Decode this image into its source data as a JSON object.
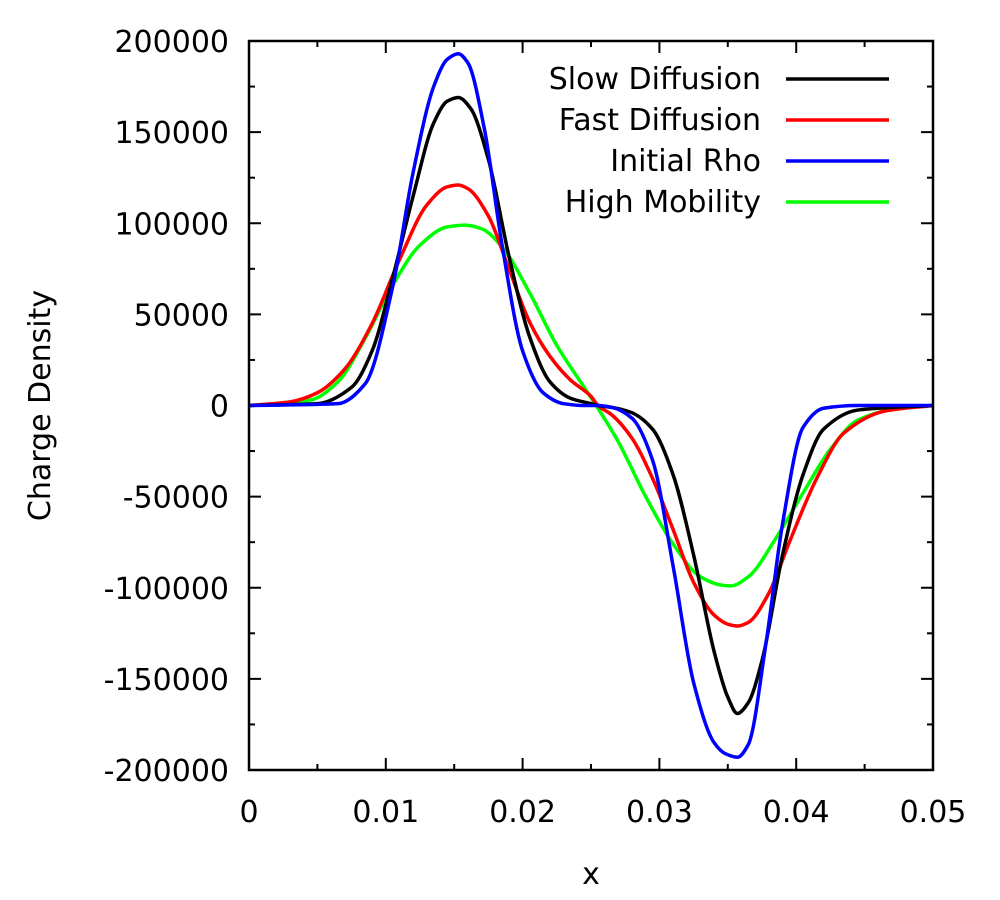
{
  "chart_data": {
    "type": "line",
    "title": "",
    "xlabel": "x",
    "ylabel": "Charge Density",
    "xlim": [
      0,
      0.05
    ],
    "ylim": [
      -200000,
      200000
    ],
    "xticks": [
      0,
      0.01,
      0.02,
      0.03,
      0.04,
      0.05
    ],
    "xtick_labels": [
      "0",
      "0.01",
      "0.02",
      "0.03",
      "0.04",
      "0.05"
    ],
    "yticks": [
      -200000,
      -150000,
      -100000,
      -50000,
      0,
      50000,
      100000,
      150000,
      200000
    ],
    "ytick_labels": [
      "-200000",
      "-150000",
      "-100000",
      "-50000",
      "0",
      "50000",
      "100000",
      "150000",
      "200000"
    ],
    "grid": false,
    "legend_position": "top-right",
    "series": [
      {
        "name": "Slow Diffusion",
        "color": "#000000",
        "x": [
          0,
          0.005,
          0.0075,
          0.009,
          0.0105,
          0.012,
          0.0135,
          0.0145,
          0.0153,
          0.0162,
          0.0175,
          0.019,
          0.0205,
          0.022,
          0.0235,
          0.025,
          0.0255,
          0.0265,
          0.028,
          0.0295,
          0.031,
          0.0325,
          0.034,
          0.035,
          0.0357,
          0.0365,
          0.0375,
          0.039,
          0.0405,
          0.042,
          0.0445,
          0.05
        ],
        "y": [
          0,
          1000,
          10000,
          30000,
          70000,
          115000,
          155000,
          167000,
          169000,
          163000,
          135000,
          82000,
          38000,
          13000,
          4000,
          1000,
          0,
          -1000,
          -4000,
          -13000,
          -38000,
          -82000,
          -135000,
          -160000,
          -169000,
          -163000,
          -140000,
          -82000,
          -38000,
          -13000,
          -2500,
          0
        ]
      },
      {
        "name": "Fast Diffusion",
        "color": "#ff0000",
        "x": [
          0,
          0.003,
          0.005,
          0.007,
          0.009,
          0.011,
          0.013,
          0.0145,
          0.0153,
          0.016,
          0.0175,
          0.019,
          0.0205,
          0.022,
          0.0235,
          0.025,
          0.0255,
          0.0265,
          0.028,
          0.0295,
          0.031,
          0.0325,
          0.034,
          0.035,
          0.0357,
          0.0365,
          0.038,
          0.0395,
          0.0415,
          0.0435,
          0.0465,
          0.05
        ],
        "y": [
          0,
          2000,
          7000,
          20000,
          45000,
          80000,
          110000,
          120000,
          121000,
          119000,
          104000,
          75000,
          46000,
          27000,
          14000,
          5000,
          0,
          -5000,
          -18000,
          -40000,
          -68000,
          -97000,
          -115000,
          -120000,
          -121000,
          -119000,
          -103000,
          -75000,
          -40000,
          -15000,
          -3000,
          0
        ]
      },
      {
        "name": "Initial Rho",
        "color": "#0000ff",
        "x": [
          0,
          0.0065,
          0.0085,
          0.0105,
          0.012,
          0.0135,
          0.0145,
          0.0153,
          0.016,
          0.0172,
          0.0185,
          0.02,
          0.0215,
          0.023,
          0.0245,
          0.0255,
          0.0265,
          0.028,
          0.0295,
          0.031,
          0.0325,
          0.034,
          0.0348,
          0.0357,
          0.0365,
          0.0378,
          0.039,
          0.0405,
          0.042,
          0.0445,
          0.05
        ],
        "y": [
          0,
          1000,
          12000,
          65000,
          128000,
          175000,
          190000,
          193000,
          188000,
          152000,
          88000,
          30000,
          7000,
          1000,
          0,
          0,
          -1000,
          -7000,
          -30000,
          -88000,
          -152000,
          -185000,
          -191000,
          -193000,
          -186000,
          -130000,
          -65000,
          -12000,
          -1500,
          0,
          0
        ]
      },
      {
        "name": "High Mobility",
        "color": "#00ff00",
        "x": [
          0,
          0.0045,
          0.0065,
          0.0085,
          0.0105,
          0.0125,
          0.0145,
          0.0158,
          0.017,
          0.0185,
          0.0205,
          0.0225,
          0.0245,
          0.0258,
          0.027,
          0.029,
          0.031,
          0.033,
          0.0345,
          0.0352,
          0.0365,
          0.0385,
          0.0405,
          0.0425,
          0.0445,
          0.0475,
          0.05
        ],
        "y": [
          0,
          3000,
          13000,
          37000,
          66000,
          88000,
          98000,
          99000,
          97000,
          87000,
          62000,
          33000,
          10000,
          -5000,
          -20000,
          -50000,
          -76000,
          -94000,
          -98500,
          -99000,
          -94000,
          -73000,
          -48000,
          -24000,
          -8000,
          -1500,
          0
        ]
      }
    ]
  }
}
